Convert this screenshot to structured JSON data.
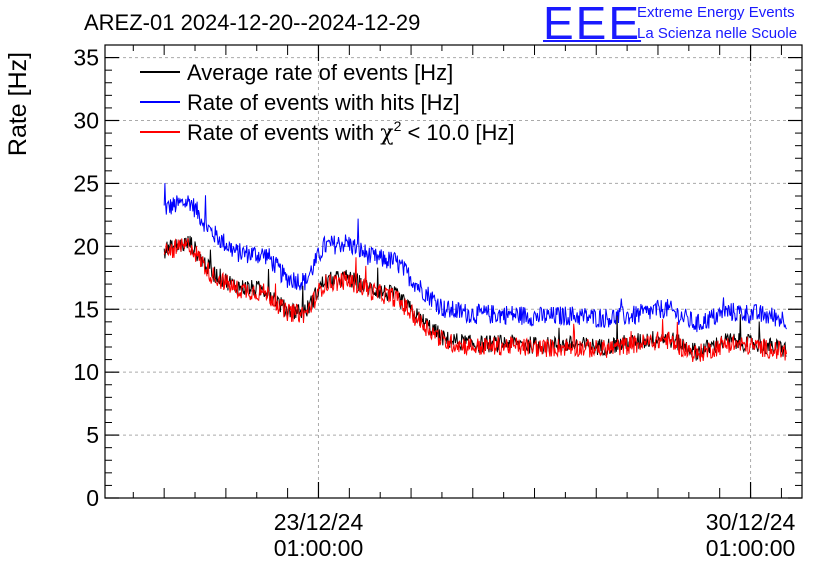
{
  "title": "AREZ-01 2024-12-20--2024-12-29",
  "logo": {
    "mark": "EEE",
    "line1": "Extreme Energy Events",
    "line2": "La Scienza nelle Scuole"
  },
  "chart_data": {
    "type": "line",
    "title": "AREZ-01 2024-12-20--2024-12-29",
    "ylabel": "Rate [Hz]",
    "xlabel": "",
    "ylim": [
      0,
      36
    ],
    "yticks": [
      0,
      5,
      10,
      15,
      20,
      25,
      30,
      35
    ],
    "xlim": [
      "2024-12-19T14:00:00",
      "2024-12-30T21:00:00"
    ],
    "xtick_labels": [
      {
        "at": "2024-12-23T01:00:00",
        "line1": "23/12/24",
        "line2": "01:00:00"
      },
      {
        "at": "2024-12-30T01:00:00",
        "line1": "30/12/24",
        "line2": "01:00:00"
      }
    ],
    "grid": true,
    "legend_position": "top-left",
    "legend": [
      {
        "label": "Average rate of events [Hz]",
        "color": "#000000"
      },
      {
        "label": "Rate of events with hits [Hz]",
        "color": "#0000ff"
      },
      {
        "label_prefix": "Rate of events with ",
        "label_symbol": "χ",
        "label_sup": "2",
        "label_suffix": " < 10.0 [Hz]",
        "color": "#ff0000"
      }
    ],
    "series": [
      {
        "name": "Rate of events with hits [Hz]",
        "color": "#0000ff",
        "noise_amplitude": 0.8,
        "x": [
          "2024-12-20T13:00:00",
          "2024-12-20T23:00:00",
          "2024-12-21T07:00:00",
          "2024-12-21T17:00:00",
          "2024-12-22T05:00:00",
          "2024-12-22T12:00:00",
          "2024-12-22T20:00:00",
          "2024-12-23T03:00:00",
          "2024-12-23T12:00:00",
          "2024-12-23T22:00:00",
          "2024-12-24T07:00:00",
          "2024-12-24T16:00:00",
          "2024-12-25T02:00:00",
          "2024-12-25T14:00:00",
          "2024-12-26T03:00:00",
          "2024-12-26T15:00:00",
          "2024-12-27T03:00:00",
          "2024-12-27T15:00:00",
          "2024-12-28T04:00:00",
          "2024-12-28T16:00:00",
          "2024-12-29T04:00:00",
          "2024-12-29T16:00:00",
          "2024-12-30T04:00:00",
          "2024-12-30T15:00:00"
        ],
        "values": [
          23.0,
          23.6,
          21.2,
          19.5,
          19.3,
          17.5,
          17.2,
          20.0,
          20.3,
          19.1,
          18.8,
          16.8,
          15.0,
          14.6,
          14.6,
          14.4,
          14.5,
          14.3,
          14.5,
          15.1,
          13.8,
          14.8,
          14.6,
          14.2
        ]
      },
      {
        "name": "Average rate of events [Hz]",
        "color": "#000000",
        "noise_amplitude": 0.7,
        "x": [
          "2024-12-20T13:00:00",
          "2024-12-20T23:00:00",
          "2024-12-21T07:00:00",
          "2024-12-21T17:00:00",
          "2024-12-22T05:00:00",
          "2024-12-22T12:00:00",
          "2024-12-22T20:00:00",
          "2024-12-23T03:00:00",
          "2024-12-23T12:00:00",
          "2024-12-23T22:00:00",
          "2024-12-24T07:00:00",
          "2024-12-24T16:00:00",
          "2024-12-25T02:00:00",
          "2024-12-25T14:00:00",
          "2024-12-26T03:00:00",
          "2024-12-26T15:00:00",
          "2024-12-27T03:00:00",
          "2024-12-27T15:00:00",
          "2024-12-28T04:00:00",
          "2024-12-28T16:00:00",
          "2024-12-29T04:00:00",
          "2024-12-29T16:00:00",
          "2024-12-30T04:00:00",
          "2024-12-30T15:00:00"
        ],
        "values": [
          19.7,
          20.3,
          18.0,
          16.8,
          16.5,
          15.0,
          14.8,
          17.2,
          17.5,
          16.6,
          16.1,
          14.3,
          12.6,
          12.2,
          12.3,
          12.1,
          12.2,
          12.0,
          12.4,
          12.8,
          11.6,
          12.5,
          12.2,
          11.8
        ]
      },
      {
        "name": "Rate of events with χ2 < 10.0 [Hz]",
        "color": "#ff0000",
        "noise_amplitude": 0.75,
        "x": [
          "2024-12-20T13:00:00",
          "2024-12-20T23:00:00",
          "2024-12-21T07:00:00",
          "2024-12-21T17:00:00",
          "2024-12-22T05:00:00",
          "2024-12-22T12:00:00",
          "2024-12-22T20:00:00",
          "2024-12-23T03:00:00",
          "2024-12-23T12:00:00",
          "2024-12-23T22:00:00",
          "2024-12-24T07:00:00",
          "2024-12-24T16:00:00",
          "2024-12-25T02:00:00",
          "2024-12-25T14:00:00",
          "2024-12-26T03:00:00",
          "2024-12-26T15:00:00",
          "2024-12-27T03:00:00",
          "2024-12-27T15:00:00",
          "2024-12-28T04:00:00",
          "2024-12-28T16:00:00",
          "2024-12-29T04:00:00",
          "2024-12-29T16:00:00",
          "2024-12-30T04:00:00",
          "2024-12-30T15:00:00"
        ],
        "values": [
          19.5,
          20.1,
          17.8,
          16.6,
          16.3,
          14.8,
          14.6,
          17.0,
          17.3,
          16.4,
          15.9,
          14.1,
          12.4,
          12.0,
          12.1,
          11.9,
          12.0,
          11.8,
          12.2,
          12.6,
          11.4,
          12.3,
          12.0,
          11.6
        ]
      }
    ]
  }
}
